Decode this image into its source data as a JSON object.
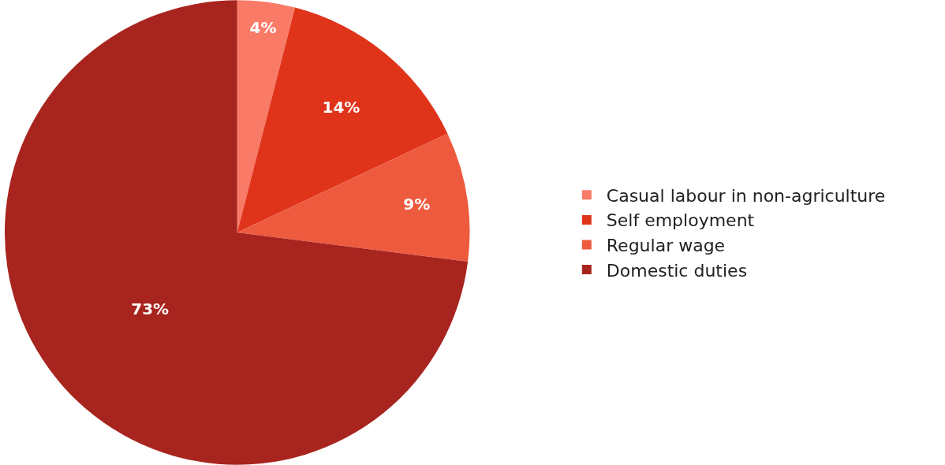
{
  "chart_data": {
    "type": "pie",
    "categories": [
      "Casual labour in non-agriculture",
      "Self employment",
      "Regular wage",
      "Domestic duties"
    ],
    "values": [
      4,
      14,
      9,
      73
    ],
    "colors": [
      "#fa7a68",
      "#e0341a",
      "#ee5a3e",
      "#a8241e"
    ],
    "value_labels": [
      "4%",
      "14%",
      "9%",
      "73%"
    ],
    "legend": "right"
  }
}
